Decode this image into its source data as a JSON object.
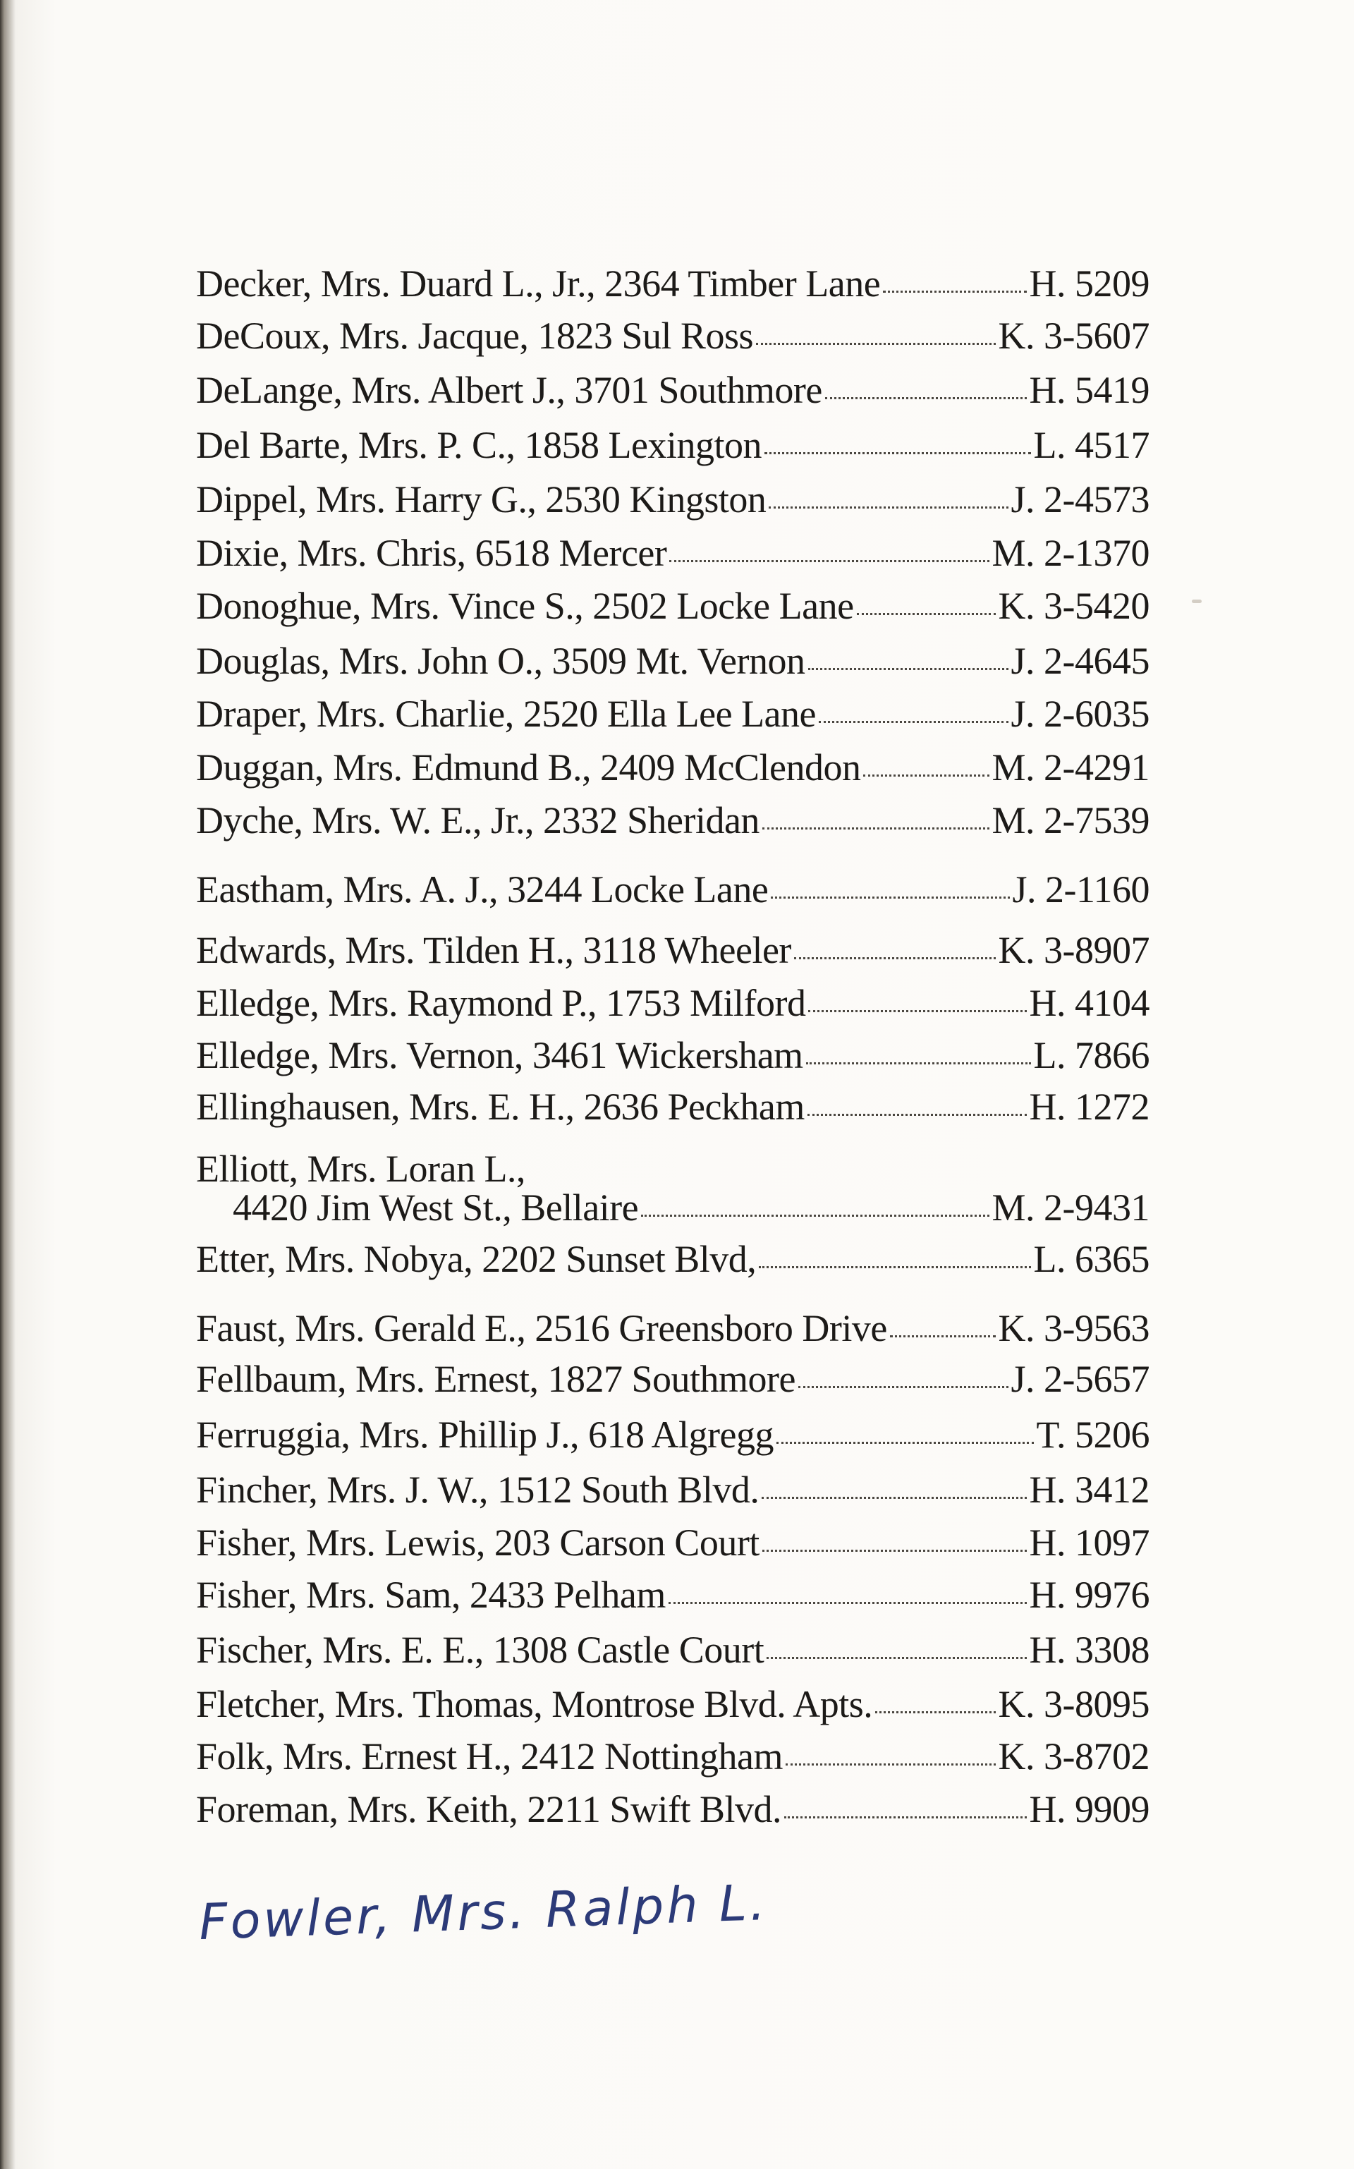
{
  "entries": [
    {
      "text": "Decker, Mrs. Duard L., Jr., 2364 Timber Lane",
      "phone": "H. 5209"
    },
    {
      "text": "DeCoux, Mrs. Jacque, 1823 Sul Ross",
      "phone": "K. 3-5607"
    },
    {
      "text": "DeLange, Mrs. Albert J., 3701 Southmore",
      "phone": "H. 5419"
    },
    {
      "text": "Del Barte, Mrs. P. C., 1858 Lexington",
      "phone": "L. 4517"
    },
    {
      "text": "Dippel, Mrs. Harry G., 2530 Kingston",
      "phone": "J. 2-4573"
    },
    {
      "text": "Dixie, Mrs. Chris, 6518 Mercer",
      "phone": "M. 2-1370"
    },
    {
      "text": "Donoghue, Mrs. Vince S., 2502 Locke Lane",
      "phone": "K. 3-5420"
    },
    {
      "text": "Douglas, Mrs. John O., 3509 Mt. Vernon",
      "phone": "J. 2-4645"
    },
    {
      "text": "Draper, Mrs. Charlie, 2520 Ella Lee Lane",
      "phone": "J. 2-6035"
    },
    {
      "text": "Duggan, Mrs. Edmund B., 2409 McClendon",
      "phone": "M. 2-4291"
    },
    {
      "text": "Dyche, Mrs. W. E., Jr., 2332 Sheridan",
      "phone": "M. 2-7539"
    },
    {
      "text": "Eastham, Mrs. A. J., 3244 Locke Lane",
      "phone": "J. 2-1160"
    },
    {
      "text": "Edwards, Mrs. Tilden H., 3118 Wheeler",
      "phone": "K. 3-8907"
    },
    {
      "text": "Elledge, Mrs. Raymond P., 1753 Milford",
      "phone": "H. 4104"
    },
    {
      "text": "Elledge, Mrs. Vernon, 3461 Wickersham",
      "phone": "L. 7866"
    },
    {
      "text": "Ellinghausen, Mrs. E. H., 2636 Peckham",
      "phone": "H. 1272"
    },
    {
      "text": "Elliott, Mrs. Loran L.,",
      "continuation": "4420 Jim West St., Bellaire",
      "phone": "M. 2-9431"
    },
    {
      "text": "Etter, Mrs. Nobya, 2202 Sunset Blvd,",
      "phone": "L. 6365"
    },
    {
      "text": "Faust, Mrs. Gerald E., 2516 Greensboro Drive",
      "phone": "K. 3-9563"
    },
    {
      "text": "Fellbaum, Mrs. Ernest, 1827 Southmore",
      "phone": "J. 2-5657"
    },
    {
      "text": "Ferruggia, Mrs. Phillip J., 618 Algregg",
      "phone": "T. 5206"
    },
    {
      "text": "Fincher, Mrs. J. W., 1512 South Blvd.",
      "phone": "H. 3412"
    },
    {
      "text": "Fisher, Mrs. Lewis, 203 Carson Court",
      "phone": "H. 1097"
    },
    {
      "text": "Fisher, Mrs. Sam, 2433 Pelham",
      "phone": "H. 9976"
    },
    {
      "text": "Fischer, Mrs. E. E., 1308 Castle Court",
      "phone": "H. 3308"
    },
    {
      "text": "Fletcher, Mrs. Thomas, Montrose Blvd. Apts.",
      "phone": "K. 3-8095"
    },
    {
      "text": "Folk, Mrs. Ernest H., 2412 Nottingham",
      "phone": "K. 3-8702"
    },
    {
      "text": "Foreman, Mrs. Keith, 2211 Swift Blvd.",
      "phone": "H. 9909"
    }
  ],
  "handwritten_note": "Fowler, Mrs. Ralph L."
}
